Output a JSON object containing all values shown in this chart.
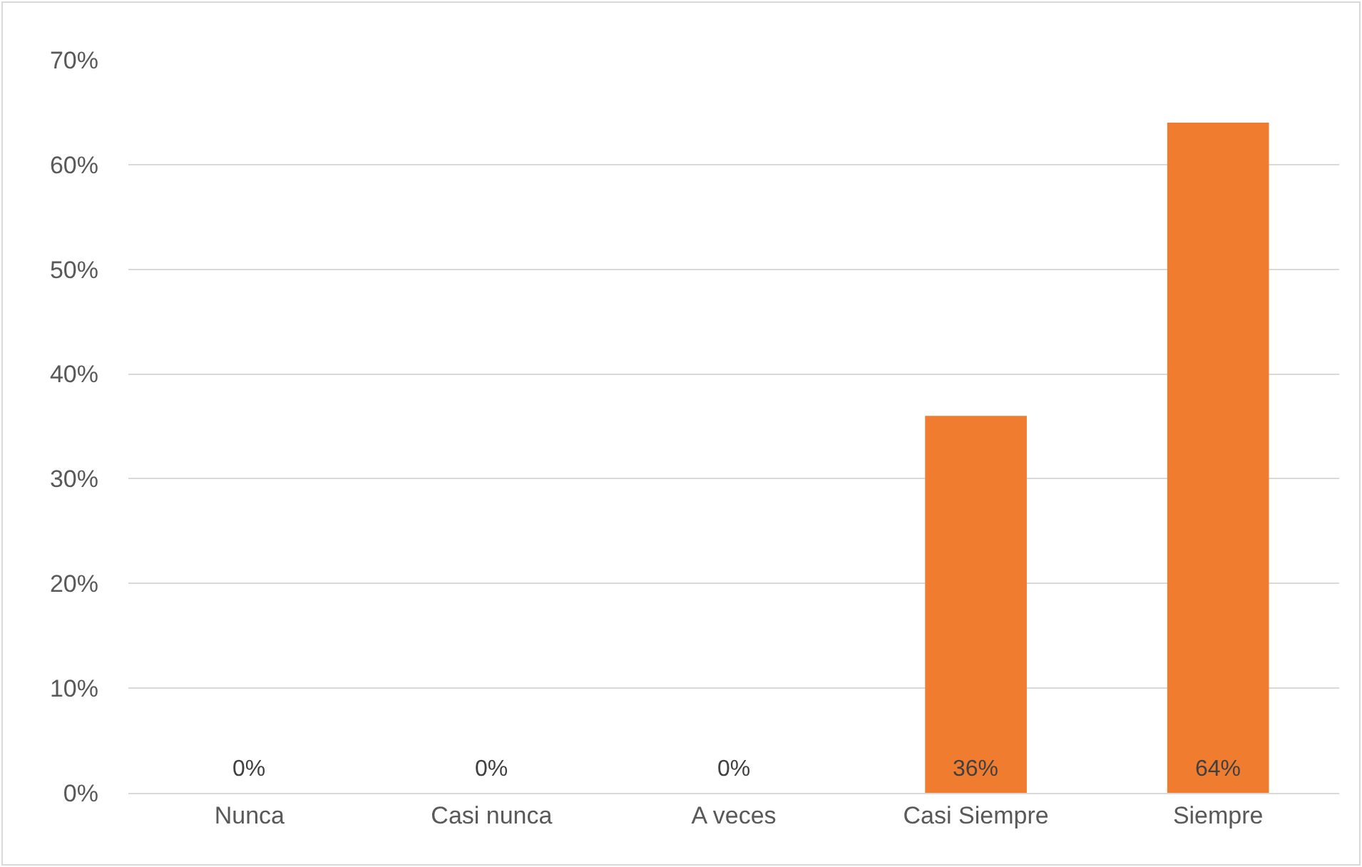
{
  "chart_data": {
    "type": "bar",
    "categories": [
      "Nunca",
      "Casi nunca",
      "A veces",
      "Casi Siempre",
      "Siempre"
    ],
    "values": [
      0,
      0,
      0,
      36,
      64
    ],
    "value_labels": [
      "0%",
      "0%",
      "0%",
      "36%",
      "64%"
    ],
    "color": "#f07c30",
    "ylim": [
      0,
      70
    ],
    "yticks": [
      {
        "value": 0,
        "label": "0%"
      },
      {
        "value": 10,
        "label": "10%"
      },
      {
        "value": 20,
        "label": "20%"
      },
      {
        "value": 30,
        "label": "30%"
      },
      {
        "value": 40,
        "label": "40%"
      },
      {
        "value": 50,
        "label": "50%"
      },
      {
        "value": 60,
        "label": "60%"
      },
      {
        "value": 70,
        "label": "70%"
      }
    ],
    "grid": "y"
  }
}
